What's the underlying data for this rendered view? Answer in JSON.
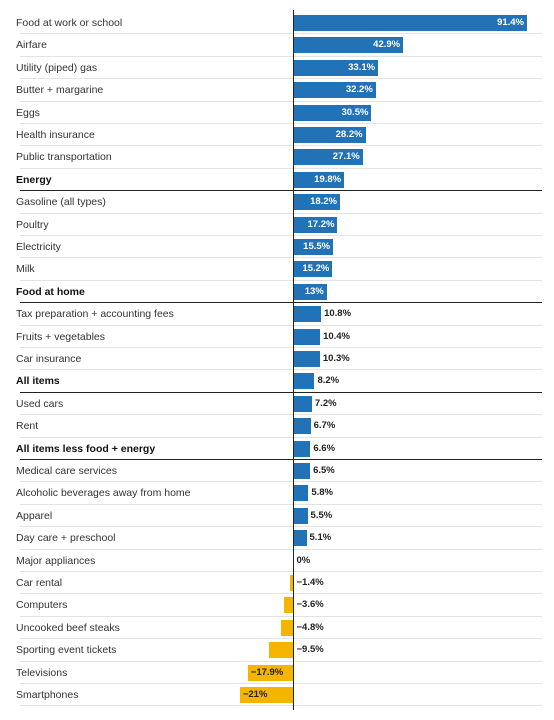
{
  "chart_data": {
    "type": "bar",
    "orientation": "horizontal",
    "colors": {
      "positive": "#2272b8",
      "negative": "#f4b400"
    },
    "value_suffix": "%",
    "categories": [
      "Food at work or school",
      "Airfare",
      "Utility (piped) gas",
      "Butter + margarine",
      "Eggs",
      "Health insurance",
      "Public transportation",
      "Energy",
      "Gasoline (all types)",
      "Poultry",
      "Electricity",
      "Milk",
      "Food at home",
      "Tax preparation + accounting fees",
      "Fruits + vegetables",
      "Car insurance",
      "All items",
      "Used cars",
      "Rent",
      "All items less food + energy",
      "Medical care services",
      "Alcoholic beverages away from home",
      "Apparel",
      "Day care + preschool",
      "Major appliances",
      "Car rental",
      "Computers",
      "Uncooked beef steaks",
      "Sporting event tickets",
      "Televisions",
      "Smartphones"
    ],
    "values": [
      91.4,
      42.9,
      33.1,
      32.2,
      30.5,
      28.2,
      27.1,
      19.8,
      18.2,
      17.2,
      15.5,
      15.2,
      13,
      10.8,
      10.4,
      10.3,
      8.2,
      7.2,
      6.7,
      6.6,
      6.5,
      5.8,
      5.5,
      5.1,
      0,
      -1.4,
      -3.6,
      -4.8,
      -9.5,
      -17.9,
      -21
    ],
    "value_labels": [
      "91.4%",
      "42.9%",
      "33.1%",
      "32.2%",
      "30.5%",
      "28.2%",
      "27.1%",
      "19.8%",
      "18.2%",
      "17.2%",
      "15.5%",
      "15.2%",
      "13%",
      "10.8%",
      "10.4%",
      "10.3%",
      "8.2%",
      "7.2%",
      "6.7%",
      "6.6%",
      "6.5%",
      "5.8%",
      "5.5%",
      "5.1%",
      "0%",
      "−1.4%",
      "−3.6%",
      "−4.8%",
      "−9.5%",
      "−17.9%",
      "−21%"
    ],
    "bold_categories": [
      "Energy",
      "Food at home",
      "All items",
      "All items less food + energy"
    ],
    "xlim": [
      -21,
      91.4
    ],
    "grid": false,
    "legend": "none"
  }
}
